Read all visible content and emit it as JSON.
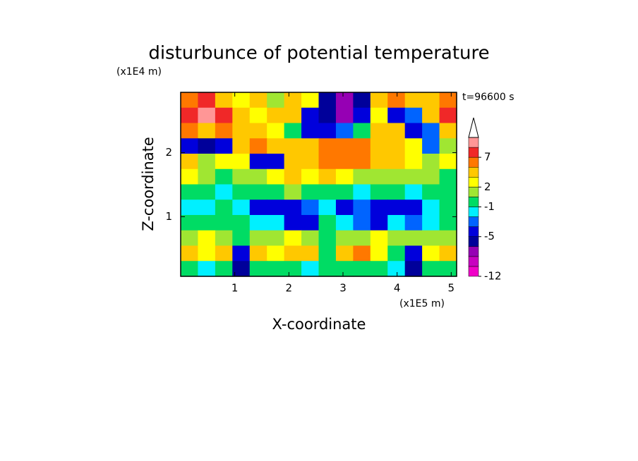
{
  "chart_data": {
    "type": "contour",
    "title": "disturbunce of potential temperature",
    "y_unit": "(x1E4 m)",
    "x_unit": "(x1E5 m)",
    "time_label": "t=96600 s",
    "xlabel": "X-coordinate",
    "ylabel": "Z-coordinate",
    "xlim": [
      0,
      5.1
    ],
    "ylim": [
      0.07,
      2.94
    ],
    "xticks": [
      1,
      2,
      3,
      4,
      5
    ],
    "yticks": [
      1,
      2
    ],
    "levels": [
      -12,
      -10,
      -8,
      -7,
      -5,
      -4,
      -3,
      -1,
      0,
      2,
      3,
      5,
      7,
      9,
      11
    ],
    "colors": [
      "#f000c8",
      "#c800c0",
      "#9600b4",
      "#00009a",
      "#0000dc",
      "#0064ff",
      "#00f0ff",
      "#00dc64",
      "#a0e632",
      "#ffff00",
      "#ffc800",
      "#ff7800",
      "#f02828",
      "#ff9696"
    ],
    "over_color": "#ffffff",
    "colorbar_ticks": [
      -12,
      -5,
      -1,
      2,
      7
    ],
    "z": [
      [
        5,
        8,
        4,
        2,
        3,
        0,
        3,
        2,
        -6,
        -8,
        -7,
        3,
        5,
        3,
        4,
        6
      ],
      [
        8,
        10,
        7,
        3,
        2,
        4,
        3,
        -5,
        -7,
        -8,
        -5,
        2,
        -5,
        -4,
        3,
        8
      ],
      [
        6,
        4,
        5,
        3,
        4,
        2,
        -1,
        -5,
        -5,
        -4,
        -1,
        3,
        4,
        -5,
        -4,
        3
      ],
      [
        -5,
        -6,
        -5,
        3,
        5,
        3,
        4,
        3,
        5,
        6,
        5,
        4,
        3,
        2,
        -4,
        1
      ],
      [
        3,
        1,
        2,
        2,
        -5,
        -5,
        3,
        4,
        6,
        6,
        5,
        3,
        3,
        2,
        1,
        2
      ],
      [
        2,
        1,
        -1,
        0,
        1,
        2,
        3,
        2,
        3,
        2,
        1,
        0,
        1,
        1,
        0,
        -1
      ],
      [
        -1,
        -1,
        -2,
        -1,
        -1,
        -1,
        0,
        -1,
        -1,
        -1,
        -2,
        -1,
        -1,
        -2,
        -1,
        -1
      ],
      [
        -2,
        -2,
        -1,
        -3,
        -5,
        -5,
        -5,
        -4,
        -2,
        -5,
        -4,
        -5,
        -5,
        -5,
        -2,
        -1
      ],
      [
        -1,
        -1,
        -1,
        -1,
        -2,
        -3,
        -5,
        -5,
        -1,
        -3,
        -4,
        -5,
        -3,
        -4,
        -2,
        -1
      ],
      [
        1,
        2,
        0,
        -1,
        0,
        1,
        2,
        0,
        -1,
        0,
        1,
        2,
        1,
        0,
        1,
        0
      ],
      [
        3,
        2,
        4,
        -5,
        3,
        2,
        4,
        3,
        -1,
        3,
        5,
        2,
        -1,
        -5,
        2,
        3
      ],
      [
        -1,
        -2,
        -1,
        -6,
        -1,
        -1,
        -1,
        -2,
        -1,
        -1,
        -1,
        -1,
        -2,
        -6,
        -1,
        -1
      ]
    ]
  }
}
